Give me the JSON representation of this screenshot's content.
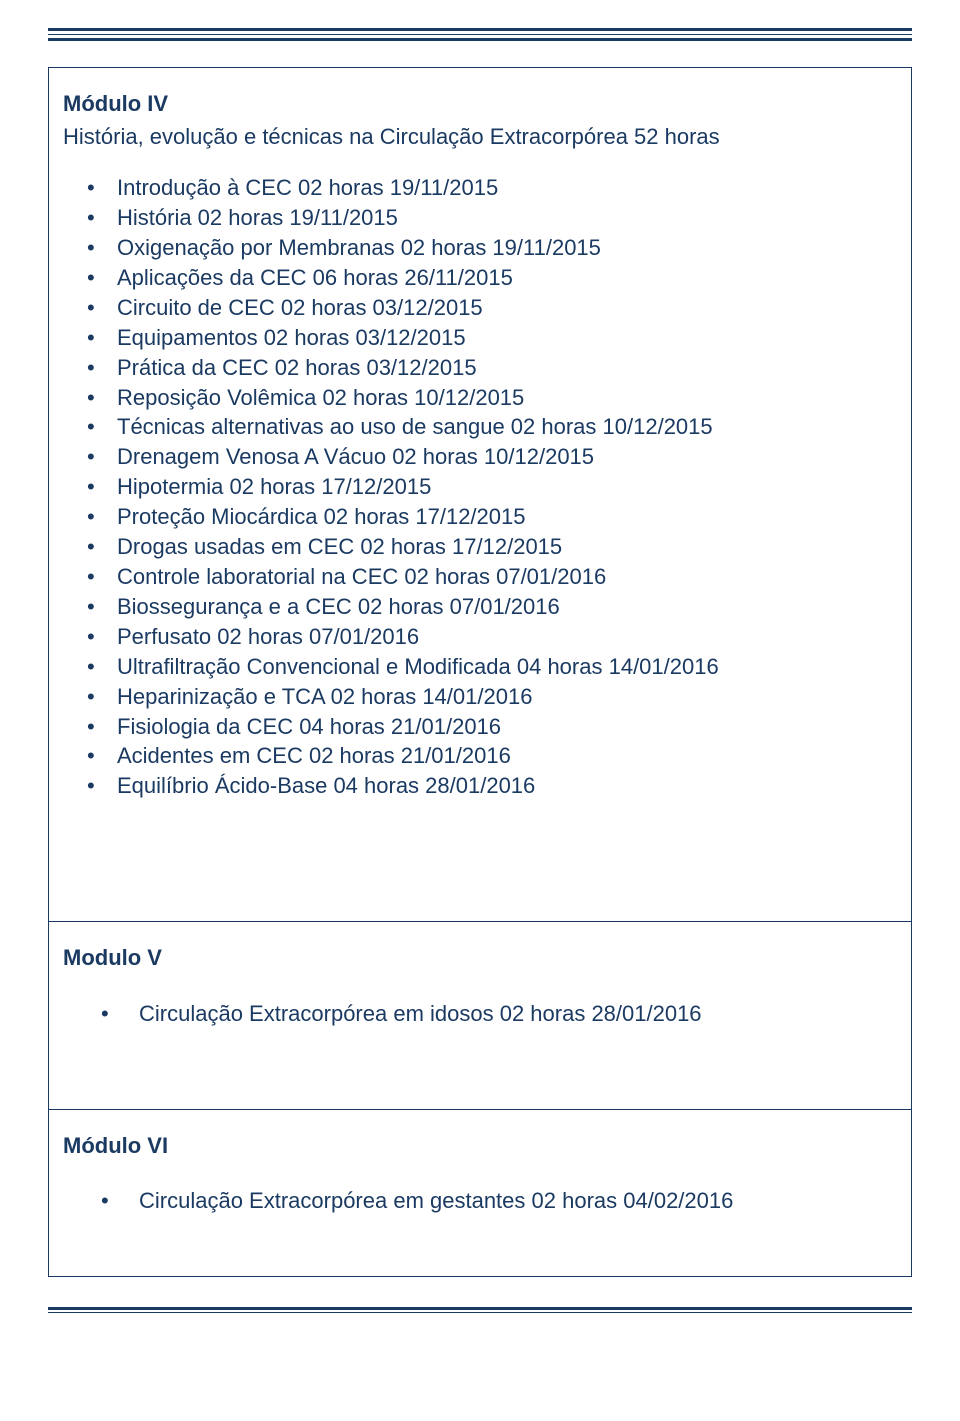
{
  "colors": {
    "accent": "#1b3a62",
    "background": "#ffffff"
  },
  "typography": {
    "base_fontsize": 22,
    "family": "Arial"
  },
  "modules": {
    "iv": {
      "title": "Módulo IV",
      "subtitle": "História, evolução e técnicas na Circulação Extracorpórea 52 horas",
      "items": [
        "Introdução à CEC 02 horas 19/11/2015",
        "História 02 horas 19/11/2015",
        "Oxigenação por Membranas 02 horas 19/11/2015",
        "Aplicações da CEC 06 horas 26/11/2015",
        "Circuito de CEC 02 horas 03/12/2015",
        "Equipamentos 02 horas 03/12/2015",
        "Prática da CEC 02 horas 03/12/2015",
        "Reposição Volêmica 02 horas 10/12/2015",
        "Técnicas alternativas ao uso de sangue 02 horas 10/12/2015",
        "Drenagem Venosa A Vácuo 02 horas 10/12/2015",
        "Hipotermia 02 horas 17/12/2015",
        "Proteção Miocárdica 02 horas 17/12/2015",
        "Drogas usadas em CEC 02 horas 17/12/2015",
        "Controle laboratorial na CEC 02 horas 07/01/2016",
        "Biossegurança e a CEC 02 horas 07/01/2016",
        "Perfusato 02 horas 07/01/2016",
        "Ultrafiltração Convencional e Modificada 04 horas 14/01/2016",
        "Heparinização e TCA 02 horas 14/01/2016",
        "Fisiologia da CEC 04 horas 21/01/2016",
        "Acidentes em CEC 02 horas 21/01/2016",
        "Equilíbrio Ácido-Base 04 horas 28/01/2016"
      ]
    },
    "v": {
      "title": "Modulo V",
      "items": [
        "Circulação Extracorpórea em idosos 02 horas 28/01/2016"
      ]
    },
    "vi": {
      "title": "Módulo VI",
      "items": [
        "Circulação Extracorpórea em gestantes 02 horas 04/02/2016"
      ]
    }
  }
}
